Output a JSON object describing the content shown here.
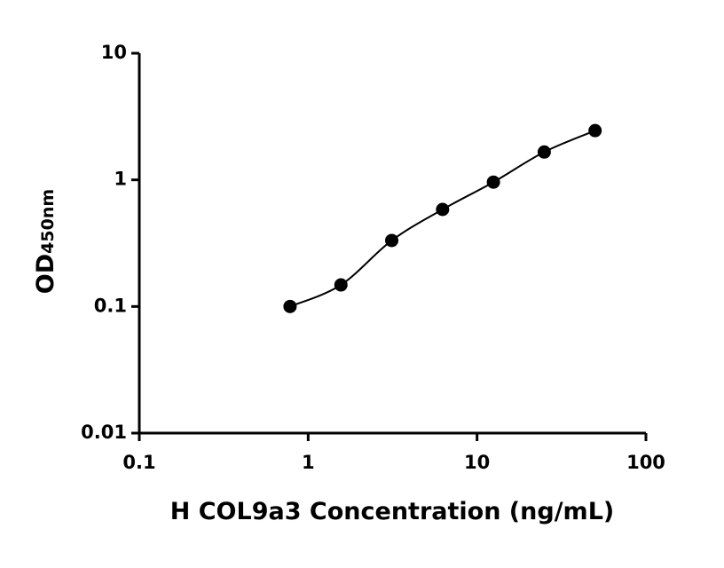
{
  "chart_data": {
    "type": "scatter",
    "xlabel": "H COL9a3 Concentration (ng/mL)",
    "ylabel": "OD",
    "ylabel_subscript": "450nm",
    "x": [
      0.781,
      1.563,
      3.125,
      6.25,
      12.5,
      25,
      50
    ],
    "values": [
      0.1,
      0.148,
      0.332,
      0.584,
      0.96,
      1.66,
      2.45
    ],
    "color": "#000000",
    "xscale": "log",
    "yscale": "log",
    "xlim": [
      0.1,
      100
    ],
    "ylim": [
      0.01,
      10
    ],
    "xticks": [
      0.1,
      1,
      10,
      100
    ],
    "yticks": [
      0.01,
      0.1,
      1,
      10
    ],
    "grid": false
  }
}
